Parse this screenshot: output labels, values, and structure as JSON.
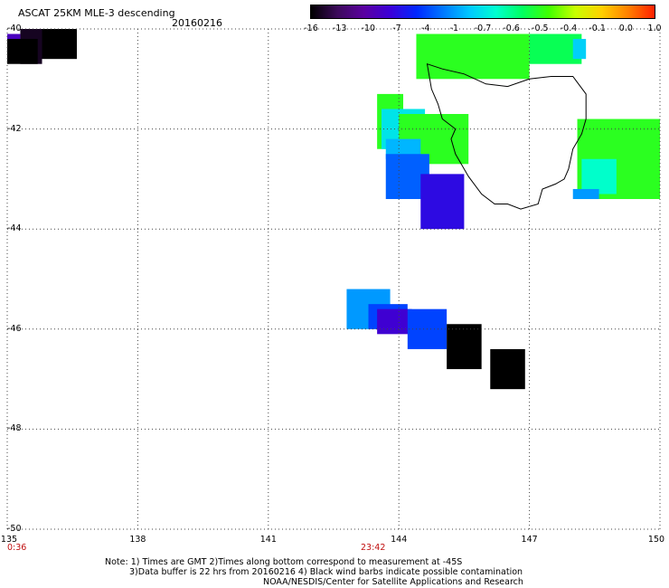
{
  "header": {
    "title": "ASCAT 25KM MLE-3 descending",
    "date": "20160216"
  },
  "colorbar": {
    "ticks": [
      "-16",
      "-13",
      "-10",
      "-7",
      "-4",
      "-1",
      "-0.7",
      "-0.6",
      "-0.5",
      "-0.4",
      "-0.1",
      "0.0",
      "1.0"
    ],
    "colors": [
      "#000000",
      "#3c0a5a",
      "#5a00a0",
      "#3c00d8",
      "#0028ff",
      "#0078ff",
      "#00c8ff",
      "#00ffd0",
      "#00ff60",
      "#40ff00",
      "#c8ff00",
      "#ffd000",
      "#ff8000",
      "#ff2000"
    ]
  },
  "axes": {
    "lat_labels": [
      "-40",
      "-42",
      "-44",
      "-46",
      "-48",
      "-50"
    ],
    "lon_labels": [
      "135",
      "138",
      "141",
      "144",
      "147",
      "150"
    ],
    "time_labels": [
      "0:36",
      "23:42"
    ]
  },
  "notes": {
    "line1": "Note: 1) Times are GMT 2)Times along bottom correspond to measurement at -45S",
    "line2": "3)Data buffer is 22 hrs from 20160216 4) Black wind barbs indicate possible contamination",
    "line3": "NOAA/NESDIS/Center for Satellite Applications and Research"
  },
  "chart_data": {
    "type": "heatmap",
    "title": "ASCAT 25KM MLE-3 descending",
    "xlim": [
      135,
      150
    ],
    "ylim": [
      -50,
      -40
    ],
    "x_ticks": [
      135,
      138,
      141,
      144,
      147,
      150
    ],
    "y_ticks": [
      -40,
      -42,
      -44,
      -46,
      -48,
      -50
    ],
    "grid": true,
    "color_scale_ticks": [
      -16,
      -13,
      -10,
      -7,
      -4,
      -1,
      -0.7,
      -0.6,
      -0.5,
      -0.4,
      -0.1,
      0.0,
      1.0
    ],
    "cells": [
      {
        "lon0": 135.0,
        "lon1": 135.3,
        "lat0": -40.1,
        "lat1": -40.4,
        "value": -9
      },
      {
        "lon0": 135.3,
        "lon1": 135.8,
        "lat0": -40.0,
        "lat1": -40.7,
        "value": -15
      },
      {
        "lon0": 135.8,
        "lon1": 136.6,
        "lat0": -40.0,
        "lat1": -40.6,
        "value": -16
      },
      {
        "lon0": 135.0,
        "lon1": 135.7,
        "lat0": -40.2,
        "lat1": -40.7,
        "value": -16
      },
      {
        "lon0": 144.4,
        "lon1": 147.0,
        "lat0": -40.1,
        "lat1": -41.0,
        "value": -0.5
      },
      {
        "lon0": 147.0,
        "lon1": 148.2,
        "lat0": -40.1,
        "lat1": -40.7,
        "value": -0.55
      },
      {
        "lon0": 148.0,
        "lon1": 148.3,
        "lat0": -40.2,
        "lat1": -40.6,
        "value": -0.8
      },
      {
        "lon0": 143.5,
        "lon1": 144.1,
        "lat0": -41.3,
        "lat1": -42.4,
        "value": -0.5
      },
      {
        "lon0": 143.6,
        "lon1": 144.6,
        "lat0": -41.6,
        "lat1": -42.4,
        "value": -0.7
      },
      {
        "lon0": 144.0,
        "lon1": 145.6,
        "lat0": -41.7,
        "lat1": -42.7,
        "value": -0.5
      },
      {
        "lon0": 143.7,
        "lon1": 144.5,
        "lat0": -42.2,
        "lat1": -42.6,
        "value": -0.9
      },
      {
        "lon0": 143.7,
        "lon1": 144.7,
        "lat0": -42.5,
        "lat1": -43.4,
        "value": -3
      },
      {
        "lon0": 144.5,
        "lon1": 145.5,
        "lat0": -42.9,
        "lat1": -44.0,
        "value": -7
      },
      {
        "lon0": 148.1,
        "lon1": 150.0,
        "lat0": -41.8,
        "lat1": -43.4,
        "value": -0.5
      },
      {
        "lon0": 148.2,
        "lon1": 149.0,
        "lat0": -42.6,
        "lat1": -43.3,
        "value": -0.65
      },
      {
        "lon0": 148.0,
        "lon1": 148.6,
        "lat0": -43.2,
        "lat1": -43.4,
        "value": -1
      },
      {
        "lon0": 142.8,
        "lon1": 143.8,
        "lat0": -45.2,
        "lat1": -46.0,
        "value": -1
      },
      {
        "lon0": 143.3,
        "lon1": 144.2,
        "lat0": -45.5,
        "lat1": -46.0,
        "value": -4
      },
      {
        "lon0": 143.5,
        "lon1": 144.3,
        "lat0": -45.6,
        "lat1": -46.1,
        "value": -8
      },
      {
        "lon0": 144.2,
        "lon1": 145.1,
        "lat0": -45.6,
        "lat1": -46.4,
        "value": -4
      },
      {
        "lon0": 145.1,
        "lon1": 145.9,
        "lat0": -45.9,
        "lat1": -46.8,
        "value": -16
      },
      {
        "lon0": 146.1,
        "lon1": 146.9,
        "lat0": -46.4,
        "lat1": -47.2,
        "value": -16
      }
    ]
  }
}
